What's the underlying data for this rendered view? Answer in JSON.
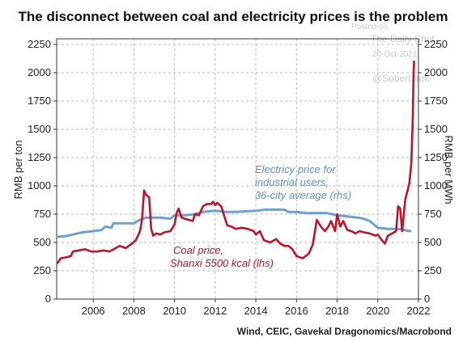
{
  "chart_data": {
    "type": "line",
    "title": "The disconnect between coal and electricity prices is the problem",
    "ylabel_left": "RMB per ton",
    "ylabel_right": "RMB per MWh",
    "ylim_left": [
      0,
      2300
    ],
    "ylim_right": [
      0,
      2300
    ],
    "yticks": [
      0,
      250,
      500,
      750,
      1000,
      1250,
      1500,
      1750,
      2000,
      2250
    ],
    "xlim": [
      2004.2,
      2022.0
    ],
    "xticks": [
      2006,
      2008,
      2010,
      2012,
      2014,
      2016,
      2018,
      2020,
      2022
    ],
    "grid": true,
    "source": "Wind, CEIC, Gavekal Dragonomics/Macrobond",
    "watermark": [
      "Posted on",
      "The Daily Shot",
      "20-Oct-2021",
      "@SoberLook"
    ],
    "series": [
      {
        "name": "Coal price, Shanxi 5500 kcal (lhs)",
        "label_lines": [
          "Coal price,",
          "Shanxi 5500 kcal  (lhs)"
        ],
        "axis": "left",
        "color": "#c0142b",
        "points": [
          [
            2004.25,
            320
          ],
          [
            2004.4,
            360
          ],
          [
            2004.7,
            370
          ],
          [
            2004.9,
            380
          ],
          [
            2005.0,
            420
          ],
          [
            2005.3,
            430
          ],
          [
            2005.6,
            440
          ],
          [
            2005.9,
            420
          ],
          [
            2006.2,
            420
          ],
          [
            2006.5,
            430
          ],
          [
            2006.8,
            420
          ],
          [
            2007.0,
            440
          ],
          [
            2007.3,
            470
          ],
          [
            2007.6,
            450
          ],
          [
            2007.9,
            490
          ],
          [
            2008.1,
            520
          ],
          [
            2008.3,
            600
          ],
          [
            2008.4,
            700
          ],
          [
            2008.5,
            960
          ],
          [
            2008.6,
            920
          ],
          [
            2008.75,
            900
          ],
          [
            2008.85,
            620
          ],
          [
            2008.95,
            560
          ],
          [
            2009.1,
            580
          ],
          [
            2009.3,
            570
          ],
          [
            2009.5,
            590
          ],
          [
            2009.8,
            600
          ],
          [
            2010.0,
            660
          ],
          [
            2010.1,
            760
          ],
          [
            2010.2,
            800
          ],
          [
            2010.35,
            720
          ],
          [
            2010.5,
            710
          ],
          [
            2010.7,
            700
          ],
          [
            2010.9,
            690
          ],
          [
            2011.0,
            750
          ],
          [
            2011.2,
            740
          ],
          [
            2011.4,
            820
          ],
          [
            2011.6,
            840
          ],
          [
            2011.8,
            840
          ],
          [
            2011.9,
            860
          ],
          [
            2012.0,
            830
          ],
          [
            2012.1,
            850
          ],
          [
            2012.3,
            820
          ],
          [
            2012.45,
            730
          ],
          [
            2012.6,
            650
          ],
          [
            2012.8,
            640
          ],
          [
            2013.0,
            620
          ],
          [
            2013.3,
            630
          ],
          [
            2013.6,
            620
          ],
          [
            2013.9,
            600
          ],
          [
            2014.0,
            570
          ],
          [
            2014.2,
            600
          ],
          [
            2014.4,
            520
          ],
          [
            2014.7,
            500
          ],
          [
            2015.0,
            530
          ],
          [
            2015.2,
            490
          ],
          [
            2015.4,
            470
          ],
          [
            2015.6,
            470
          ],
          [
            2015.8,
            440
          ],
          [
            2016.0,
            380
          ],
          [
            2016.3,
            360
          ],
          [
            2016.6,
            400
          ],
          [
            2016.8,
            480
          ],
          [
            2017.0,
            700
          ],
          [
            2017.2,
            640
          ],
          [
            2017.4,
            600
          ],
          [
            2017.6,
            650
          ],
          [
            2017.7,
            690
          ],
          [
            2017.9,
            600
          ],
          [
            2018.0,
            750
          ],
          [
            2018.15,
            640
          ],
          [
            2018.3,
            690
          ],
          [
            2018.5,
            610
          ],
          [
            2018.7,
            600
          ],
          [
            2018.9,
            580
          ],
          [
            2019.1,
            600
          ],
          [
            2019.3,
            590
          ],
          [
            2019.6,
            580
          ],
          [
            2019.9,
            560
          ],
          [
            2020.0,
            570
          ],
          [
            2020.2,
            520
          ],
          [
            2020.35,
            490
          ],
          [
            2020.5,
            560
          ],
          [
            2020.7,
            580
          ],
          [
            2020.9,
            600
          ],
          [
            2021.0,
            820
          ],
          [
            2021.1,
            800
          ],
          [
            2021.2,
            600
          ],
          [
            2021.35,
            880
          ],
          [
            2021.45,
            950
          ],
          [
            2021.55,
            1020
          ],
          [
            2021.65,
            1200
          ],
          [
            2021.72,
            1600
          ],
          [
            2021.76,
            2000
          ],
          [
            2021.78,
            2100
          ]
        ]
      },
      {
        "name": "Electricy price for industrial users, 36-city average (rhs)",
        "label_lines": [
          "Electricy price for",
          "industrial users,",
          "36-city average (rhs)"
        ],
        "axis": "right",
        "color": "#6f9fcf",
        "points": [
          [
            2004.25,
            550
          ],
          [
            2004.6,
            555
          ],
          [
            2005.0,
            570
          ],
          [
            2005.5,
            590
          ],
          [
            2006.0,
            600
          ],
          [
            2006.4,
            610
          ],
          [
            2006.6,
            640
          ],
          [
            2006.9,
            630
          ],
          [
            2007.0,
            670
          ],
          [
            2007.5,
            670
          ],
          [
            2008.0,
            670
          ],
          [
            2008.3,
            700
          ],
          [
            2008.6,
            720
          ],
          [
            2009.0,
            720
          ],
          [
            2009.3,
            720
          ],
          [
            2009.8,
            710
          ],
          [
            2010.0,
            740
          ],
          [
            2010.5,
            740
          ],
          [
            2011.0,
            750
          ],
          [
            2011.4,
            770
          ],
          [
            2012.0,
            780
          ],
          [
            2012.5,
            770
          ],
          [
            2013.0,
            770
          ],
          [
            2013.5,
            775
          ],
          [
            2014.0,
            780
          ],
          [
            2014.5,
            790
          ],
          [
            2015.0,
            790
          ],
          [
            2015.4,
            790
          ],
          [
            2015.6,
            770
          ],
          [
            2016.0,
            770
          ],
          [
            2016.5,
            760
          ],
          [
            2017.0,
            760
          ],
          [
            2017.5,
            760
          ],
          [
            2018.0,
            740
          ],
          [
            2018.5,
            730
          ],
          [
            2019.0,
            720
          ],
          [
            2019.3,
            710
          ],
          [
            2019.6,
            690
          ],
          [
            2020.0,
            630
          ],
          [
            2020.5,
            620
          ],
          [
            2021.0,
            620
          ],
          [
            2021.3,
            610
          ],
          [
            2021.6,
            600
          ]
        ]
      }
    ]
  }
}
